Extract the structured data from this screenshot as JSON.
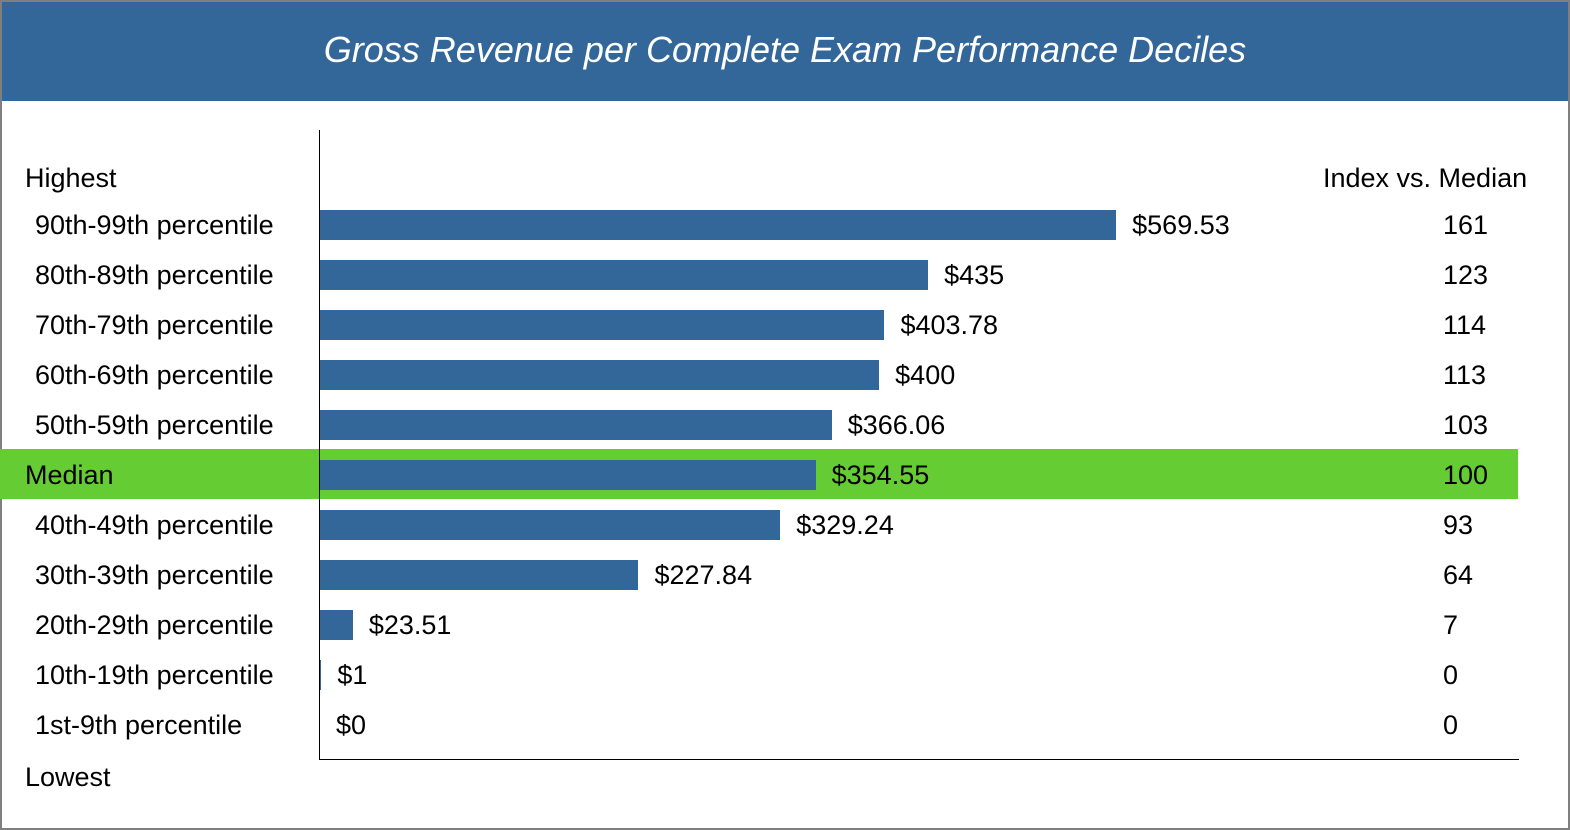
{
  "title": "Gross Revenue per Complete Exam Performance Deciles",
  "colors": {
    "header_bg": "#336699",
    "bar": "#336699",
    "highlight": "#66cc33"
  },
  "chart_data": {
    "type": "bar",
    "orientation": "horizontal",
    "title": "Gross Revenue per Complete Exam Performance Deciles",
    "top_label": "Highest",
    "bottom_label": "Lowest",
    "index_header": "Index vs. Median",
    "highlight_category": "Median",
    "categories": [
      "90th-99th percentile",
      "80th-89th percentile",
      "70th-79th percentile",
      "60th-69th percentile",
      "50th-59th percentile",
      "Median",
      "40th-49th percentile",
      "30th-39th percentile",
      "20th-29th percentile",
      "10th-19th percentile",
      "1st-9th percentile"
    ],
    "values": [
      569.53,
      435,
      403.78,
      400,
      366.06,
      354.55,
      329.24,
      227.84,
      23.51,
      1,
      0
    ],
    "value_labels": [
      "$569.53",
      "$435",
      "$403.78",
      "$400",
      "$366.06",
      "$354.55",
      "$329.24",
      "$227.84",
      "$23.51",
      "$1",
      "$0"
    ],
    "index_values": [
      "161",
      "123",
      "114",
      "113",
      "103",
      "100",
      "93",
      "64",
      "7",
      "0",
      "0"
    ],
    "xlim": [
      0,
      857
    ]
  }
}
